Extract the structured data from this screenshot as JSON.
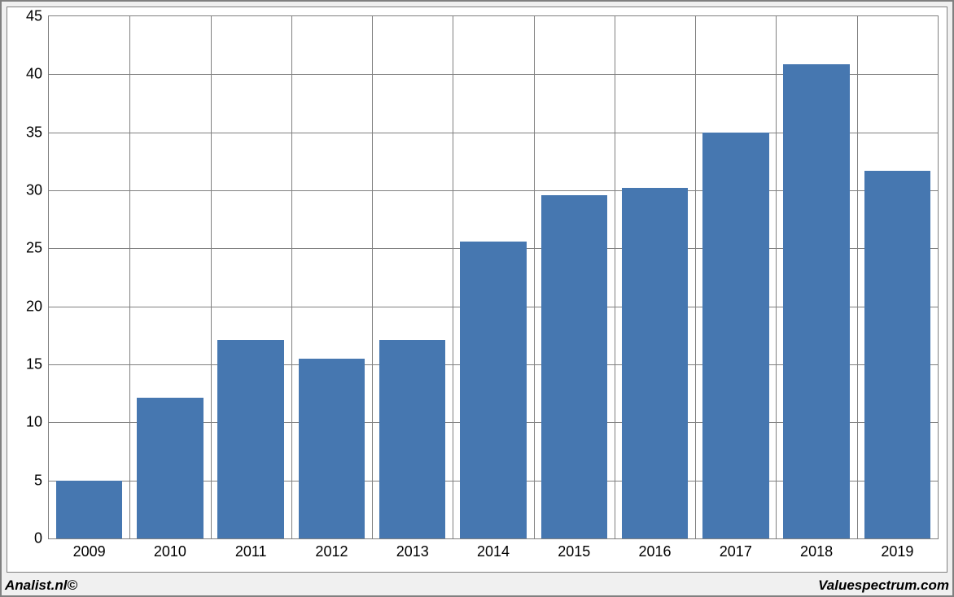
{
  "chart": {
    "type": "bar",
    "categories": [
      "2009",
      "2010",
      "2011",
      "2012",
      "2013",
      "2014",
      "2015",
      "2016",
      "2017",
      "2018",
      "2019"
    ],
    "values": [
      5.0,
      12.1,
      17.1,
      15.5,
      17.1,
      25.6,
      29.6,
      30.2,
      35.0,
      40.9,
      31.7
    ],
    "bar_color": "#4677b0",
    "ylim": [
      0,
      45
    ],
    "ytick_step": 5,
    "yticks": [
      0,
      5,
      10,
      15,
      20,
      25,
      30,
      35,
      40,
      45
    ],
    "background_color": "#ffffff",
    "outer_background_color": "#f0f0f0",
    "grid_color": "#808080",
    "border_color": "#808080",
    "bar_width_ratio": 0.82,
    "tick_fontsize": 18,
    "footer_fontsize": 17
  },
  "footer": {
    "left": "Analist.nl©",
    "right": "Valuespectrum.com"
  }
}
